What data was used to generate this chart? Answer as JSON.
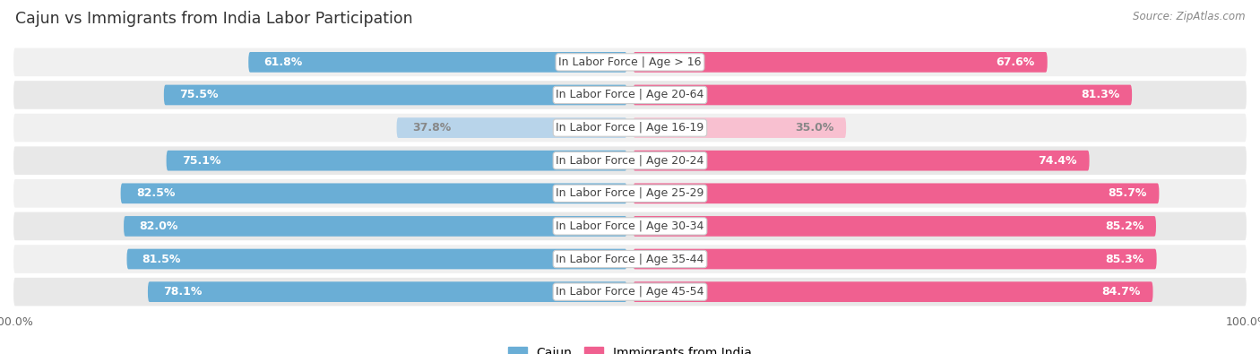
{
  "title": "Cajun vs Immigrants from India Labor Participation",
  "source": "Source: ZipAtlas.com",
  "categories": [
    "In Labor Force | Age > 16",
    "In Labor Force | Age 20-64",
    "In Labor Force | Age 16-19",
    "In Labor Force | Age 20-24",
    "In Labor Force | Age 25-29",
    "In Labor Force | Age 30-34",
    "In Labor Force | Age 35-44",
    "In Labor Force | Age 45-54"
  ],
  "cajun_values": [
    61.8,
    75.5,
    37.8,
    75.1,
    82.5,
    82.0,
    81.5,
    78.1
  ],
  "india_values": [
    67.6,
    81.3,
    35.0,
    74.4,
    85.7,
    85.2,
    85.3,
    84.7
  ],
  "cajun_color": "#6aaed6",
  "cajun_color_light": "#b8d4ea",
  "india_color": "#f06090",
  "india_color_light": "#f8c0d0",
  "row_bg_odd": "#f0f0f0",
  "row_bg_even": "#e8e8e8",
  "max_value": 100.0,
  "bar_height": 0.62,
  "label_fontsize": 9.0,
  "title_fontsize": 12.5,
  "legend_fontsize": 10,
  "value_fontsize": 9.0,
  "axis_tick_fontsize": 9
}
